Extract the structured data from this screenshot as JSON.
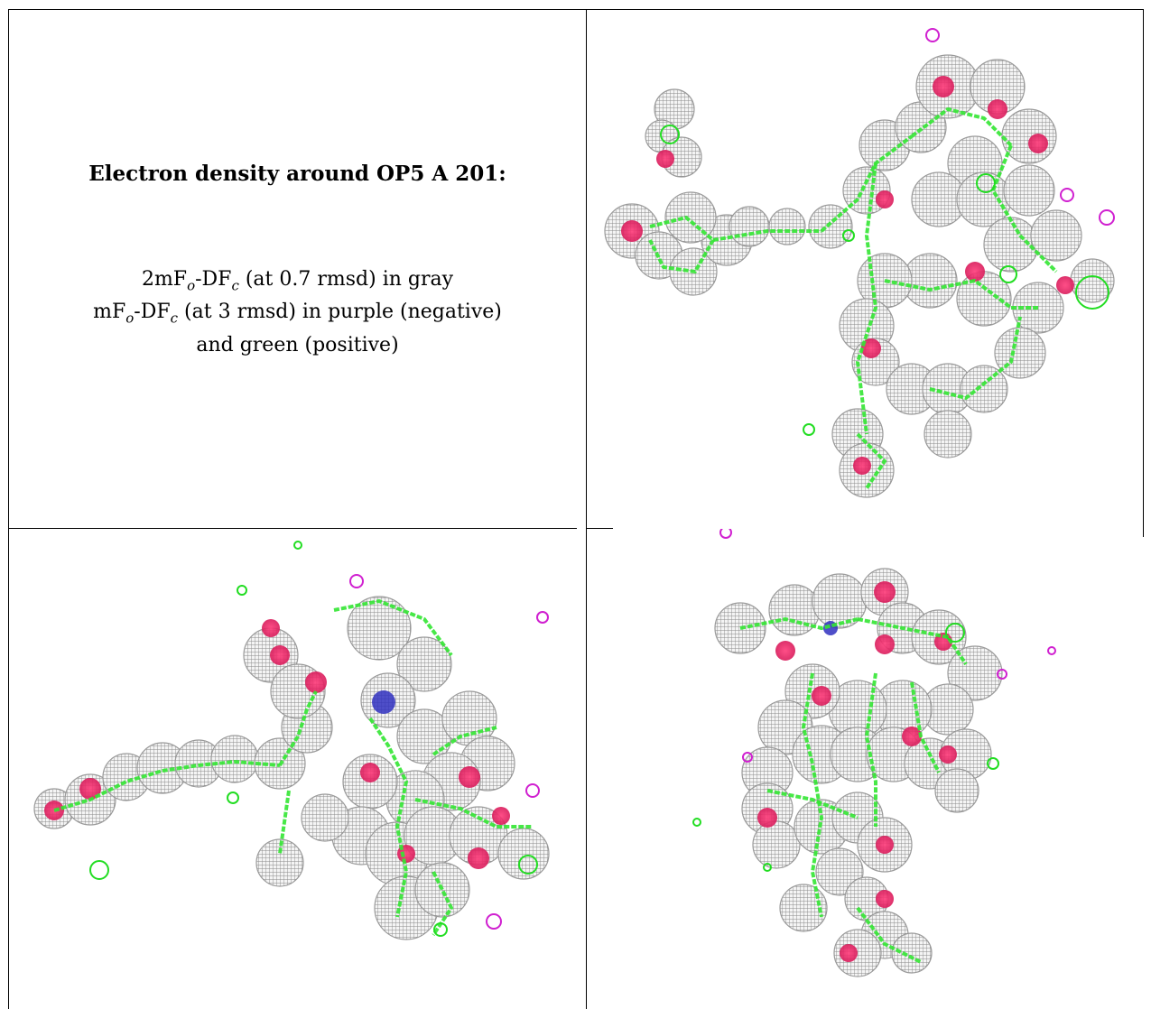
{
  "caption": {
    "title": "Electron density around OP5 A 201:",
    "line1": {
      "prefix": "2mF",
      "sub1": "o",
      "mid": "-DF",
      "sub2": "c",
      "suffix": " (at 0.7 rmsd) in gray"
    },
    "line2": {
      "prefix": "mF",
      "sub1": "o",
      "mid": "-DF",
      "sub2": "c",
      "suffix": " (at 3 rmsd) in purple (negative)"
    },
    "line3": "and green (positive)"
  },
  "colors": {
    "density_mesh": "#8a8a8a",
    "density_fill": "#d9d9d9",
    "positive_map": "#22dd22",
    "negative_map": "#d020d0",
    "oxygen": "#d81a5a",
    "nitrogen": "#3030c0",
    "carbon_bond": "#33e633"
  },
  "panels": [
    {
      "id": "top-right",
      "description_icon": "electron-density-mesh"
    },
    {
      "id": "bottom-left",
      "description_icon": "electron-density-mesh"
    },
    {
      "id": "bottom-right",
      "description_icon": "electron-density-mesh"
    }
  ]
}
